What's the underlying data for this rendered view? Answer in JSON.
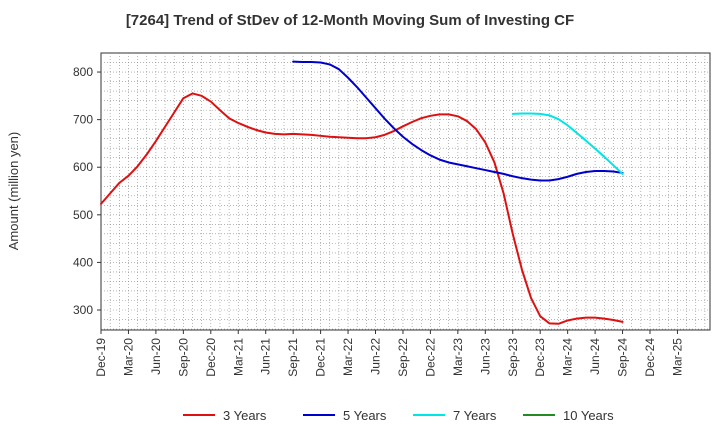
{
  "chart_data": {
    "type": "line",
    "title": "[7264]  Trend of StDev of 12-Month Moving Sum of Investing CF",
    "ylabel": "Amount (million yen)",
    "xlabel": "",
    "ylim": [
      258,
      840
    ],
    "yticks": [
      300,
      400,
      500,
      600,
      700,
      800
    ],
    "x_ticks": [
      "Dec-19",
      "Mar-20",
      "Jun-20",
      "Sep-20",
      "Dec-20",
      "Mar-21",
      "Jun-21",
      "Sep-21",
      "Dec-21",
      "Mar-22",
      "Jun-22",
      "Sep-22",
      "Dec-22",
      "Mar-23",
      "Jun-23",
      "Sep-23",
      "Dec-23",
      "Mar-24",
      "Jun-24",
      "Sep-24",
      "Dec-24",
      "Mar-25"
    ],
    "grid": true,
    "legend_position": "bottom",
    "series": [
      {
        "name": "3 Years",
        "color": "#dd1111",
        "points": [
          [
            "Dec-19",
            523
          ],
          [
            "Jan-20",
            545
          ],
          [
            "Feb-20",
            567
          ],
          [
            "Mar-20",
            582
          ],
          [
            "Apr-20",
            602
          ],
          [
            "May-20",
            627
          ],
          [
            "Jun-20",
            655
          ],
          [
            "Jul-20",
            685
          ],
          [
            "Aug-20",
            715
          ],
          [
            "Sep-20",
            745
          ],
          [
            "Oct-20",
            755
          ],
          [
            "Nov-20",
            750
          ],
          [
            "Dec-20",
            738
          ],
          [
            "Jan-21",
            720
          ],
          [
            "Feb-21",
            703
          ],
          [
            "Mar-21",
            693
          ],
          [
            "Apr-21",
            685
          ],
          [
            "May-21",
            678
          ],
          [
            "Jun-21",
            673
          ],
          [
            "Jul-21",
            670
          ],
          [
            "Aug-21",
            669
          ],
          [
            "Sep-21",
            670
          ],
          [
            "Oct-21",
            669
          ],
          [
            "Nov-21",
            668
          ],
          [
            "Dec-21",
            666
          ],
          [
            "Jan-22",
            664
          ],
          [
            "Feb-22",
            663
          ],
          [
            "Mar-22",
            662
          ],
          [
            "Apr-22",
            661
          ],
          [
            "May-22",
            661
          ],
          [
            "Jun-22",
            663
          ],
          [
            "Jul-22",
            668
          ],
          [
            "Aug-22",
            676
          ],
          [
            "Sep-22",
            686
          ],
          [
            "Oct-22",
            695
          ],
          [
            "Nov-22",
            703
          ],
          [
            "Dec-22",
            708
          ],
          [
            "Jan-23",
            711
          ],
          [
            "Feb-23",
            711
          ],
          [
            "Mar-23",
            707
          ],
          [
            "Apr-23",
            697
          ],
          [
            "May-23",
            680
          ],
          [
            "Jun-23",
            652
          ],
          [
            "Jul-23",
            610
          ],
          [
            "Aug-23",
            545
          ],
          [
            "Sep-23",
            460
          ],
          [
            "Oct-23",
            385
          ],
          [
            "Nov-23",
            325
          ],
          [
            "Dec-23",
            287
          ],
          [
            "Jan-24",
            272
          ],
          [
            "Feb-24",
            271
          ],
          [
            "Mar-24",
            278
          ],
          [
            "Apr-24",
            282
          ],
          [
            "May-24",
            284
          ],
          [
            "Jun-24",
            284
          ],
          [
            "Jul-24",
            282
          ],
          [
            "Aug-24",
            279
          ],
          [
            "Sep-24",
            275
          ]
        ]
      },
      {
        "name": "5 Years",
        "color": "#0000cc",
        "points": [
          [
            "Sep-21",
            822
          ],
          [
            "Oct-21",
            821
          ],
          [
            "Nov-21",
            821
          ],
          [
            "Dec-21",
            820
          ],
          [
            "Jan-22",
            816
          ],
          [
            "Feb-22",
            806
          ],
          [
            "Mar-22",
            788
          ],
          [
            "Apr-22",
            768
          ],
          [
            "May-22",
            746
          ],
          [
            "Jun-22",
            724
          ],
          [
            "Jul-22",
            702
          ],
          [
            "Aug-22",
            682
          ],
          [
            "Sep-22",
            664
          ],
          [
            "Oct-22",
            649
          ],
          [
            "Nov-22",
            636
          ],
          [
            "Dec-22",
            625
          ],
          [
            "Jan-23",
            616
          ],
          [
            "Feb-23",
            610
          ],
          [
            "Mar-23",
            606
          ],
          [
            "Apr-23",
            602
          ],
          [
            "May-23",
            598
          ],
          [
            "Jun-23",
            594
          ],
          [
            "Jul-23",
            590
          ],
          [
            "Aug-23",
            586
          ],
          [
            "Sep-23",
            581
          ],
          [
            "Oct-23",
            577
          ],
          [
            "Nov-23",
            574
          ],
          [
            "Dec-23",
            572
          ],
          [
            "Jan-24",
            572
          ],
          [
            "Feb-24",
            575
          ],
          [
            "Mar-24",
            580
          ],
          [
            "Apr-24",
            586
          ],
          [
            "May-24",
            590
          ],
          [
            "Jun-24",
            592
          ],
          [
            "Jul-24",
            592
          ],
          [
            "Aug-24",
            591
          ],
          [
            "Sep-24",
            588
          ]
        ]
      },
      {
        "name": "7 Years",
        "color": "#00e5e5",
        "points": [
          [
            "Sep-23",
            712
          ],
          [
            "Oct-23",
            713
          ],
          [
            "Nov-23",
            713
          ],
          [
            "Dec-23",
            712
          ],
          [
            "Jan-24",
            709
          ],
          [
            "Feb-24",
            701
          ],
          [
            "Mar-24",
            688
          ],
          [
            "Apr-24",
            672
          ],
          [
            "May-24",
            656
          ],
          [
            "Jun-24",
            639
          ],
          [
            "Jul-24",
            622
          ],
          [
            "Aug-24",
            604
          ],
          [
            "Sep-24",
            586
          ]
        ]
      },
      {
        "name": "10 Years",
        "color": "#228b22",
        "points": []
      }
    ]
  }
}
